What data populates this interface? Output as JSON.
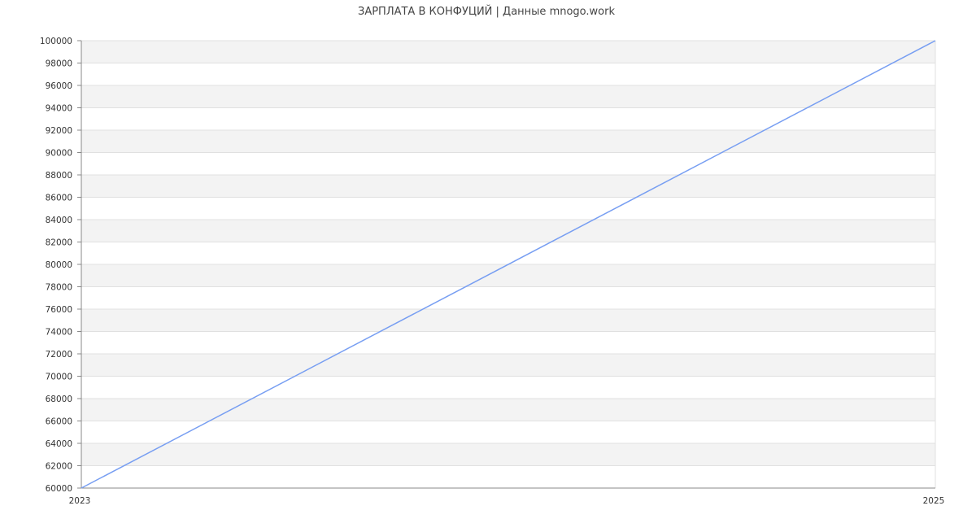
{
  "chart_data": {
    "type": "line",
    "title": "ЗАРПЛАТА В КОНФУЦИЙ | Данные mnogo.work",
    "xlabel": "",
    "ylabel": "",
    "x_ticks": [
      "2023",
      "2025"
    ],
    "xlim": [
      2023,
      2025
    ],
    "ylim": [
      60000,
      100000
    ],
    "y_tick_step": 2000,
    "grid": true,
    "series": [
      {
        "x": [
          2023,
          2025
        ],
        "values": [
          60000,
          100000
        ],
        "color": "#779ef2"
      }
    ],
    "colors": {
      "band": "#f3f3f3",
      "grid": "#e0e0e0",
      "axis": "#888888",
      "text": "#333333"
    }
  }
}
